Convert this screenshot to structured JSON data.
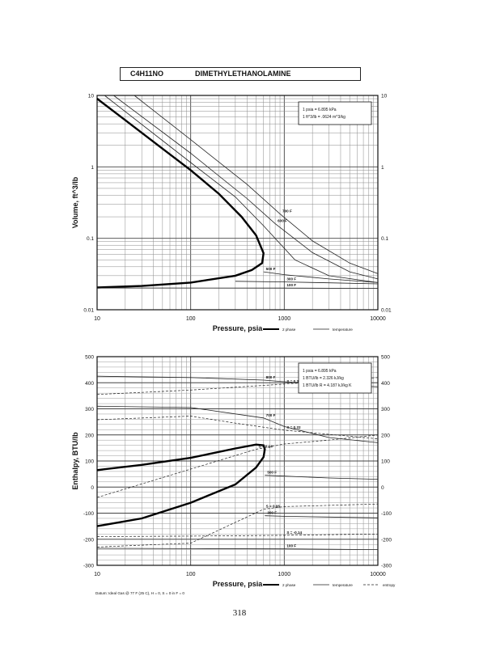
{
  "header": {
    "formula": "C4H11NO",
    "name": "DIMETHYLETHANOLAMINE"
  },
  "page_number": "318",
  "chart_data": [
    {
      "type": "line",
      "xscale": "log",
      "yscale": "log",
      "xlabel": "Pressure,  psia",
      "ylabel": "Volume, ft^3/lb",
      "xlim": [
        10,
        10000
      ],
      "ylim": [
        0.01,
        10
      ],
      "x_ticks": [
        "10",
        "100",
        "1000",
        "10000"
      ],
      "y_ticks": [
        "0.01",
        "0.1",
        "1",
        "10"
      ],
      "notes": [
        "1 psia = 6.895 kPa",
        "1 ft^3/lb = .0624 m^3/kg"
      ],
      "legend": {
        "two_phase": "2 phase",
        "temperature": "temperature"
      },
      "series": [
        {
          "kind": "two_phase",
          "points": [
            [
              10,
              9.0
            ],
            [
              20,
              4.5
            ],
            [
              50,
              1.8
            ],
            [
              100,
              0.9
            ],
            [
              200,
              0.42
            ],
            [
              350,
              0.2
            ],
            [
              500,
              0.11
            ],
            [
              600,
              0.062
            ],
            [
              580,
              0.045
            ],
            [
              450,
              0.036
            ],
            [
              300,
              0.03
            ],
            [
              100,
              0.024
            ],
            [
              30,
              0.0215
            ],
            [
              10,
              0.0205
            ]
          ]
        },
        {
          "kind": "temperature",
          "name": "600 F",
          "points": [
            [
              15,
              10
            ],
            [
              100,
              1.55
            ],
            [
              400,
              0.36
            ],
            [
              800,
              0.16
            ],
            [
              2000,
              0.063
            ],
            [
              5000,
              0.034
            ],
            [
              10000,
              0.027
            ]
          ]
        },
        {
          "kind": "temperature",
          "name": "700 F",
          "points": [
            [
              25,
              10
            ],
            [
              100,
              2.4
            ],
            [
              400,
              0.57
            ],
            [
              900,
              0.22
            ],
            [
              2000,
              0.092
            ],
            [
              5000,
              0.045
            ],
            [
              10000,
              0.032
            ]
          ]
        },
        {
          "kind": "temperature",
          "name": "",
          "points": [
            [
              12,
              10
            ],
            [
              100,
              1.15
            ],
            [
              300,
              0.38
            ],
            [
              600,
              0.15
            ],
            [
              1300,
              0.05
            ],
            [
              3000,
              0.03
            ],
            [
              10000,
              0.024
            ]
          ]
        },
        {
          "kind": "temperature",
          "name": "500 F",
          "points": [
            [
              600,
              0.034
            ],
            [
              1000,
              0.031
            ],
            [
              3000,
              0.027
            ],
            [
              10000,
              0.024
            ]
          ]
        },
        {
          "kind": "temperature",
          "name": "300 F",
          "points": [
            [
              300,
              0.025
            ],
            [
              1000,
              0.0245
            ],
            [
              3000,
              0.0238
            ],
            [
              10000,
              0.023
            ]
          ]
        },
        {
          "kind": "temperature",
          "name": "100 F",
          "points": [
            [
              10,
              0.0202
            ],
            [
              1000,
              0.0201
            ],
            [
              10000,
              0.0199
            ]
          ]
        }
      ],
      "annotations": [
        "600 F",
        "700 F",
        "500 F",
        "300 F",
        "100 F"
      ]
    },
    {
      "type": "line",
      "xscale": "log",
      "yscale": "linear",
      "xlabel": "Pressure,  psia",
      "ylabel": "Enthalpy, BTU/lb",
      "xlim": [
        10,
        10000
      ],
      "ylim": [
        -300,
        500
      ],
      "x_ticks": [
        "10",
        "100",
        "1000",
        "10000"
      ],
      "y_ticks": [
        "-300",
        "-200",
        "-100",
        "0",
        "100",
        "200",
        "300",
        "400",
        "500"
      ],
      "notes": [
        "1 psia = 6.895 kPa",
        "1 BTU/lb = 2.326 kJ/kg",
        "1 BTU/lb R = 4.187 kJ/kg K"
      ],
      "footnote": "Datum: Ideal Gas @ 77 F (25 C), H = 0, S = 0 in F = 0",
      "legend": {
        "two_phase": "2 phase",
        "temperature": "temperature",
        "entropy": "entropy"
      },
      "series": [
        {
          "kind": "two_phase",
          "points": [
            [
              10,
              65
            ],
            [
              30,
              85
            ],
            [
              100,
              112
            ],
            [
              300,
              148
            ],
            [
              500,
              163
            ],
            [
              600,
              160
            ],
            [
              620,
              145
            ],
            [
              600,
              115
            ],
            [
              500,
              75
            ],
            [
              300,
              10
            ],
            [
              100,
              -60
            ],
            [
              30,
              -120
            ],
            [
              10,
              -150
            ]
          ]
        },
        {
          "kind": "temperature",
          "name": "800 F",
          "points": [
            [
              10,
              425
            ],
            [
              100,
              420
            ],
            [
              600,
              410
            ],
            [
              1000,
              404
            ],
            [
              3000,
              392
            ],
            [
              10000,
              385
            ]
          ]
        },
        {
          "kind": "temperature",
          "name": "700 F",
          "points": [
            [
              10,
              310
            ],
            [
              100,
              305
            ],
            [
              600,
              265
            ],
            [
              1000,
              232
            ],
            [
              3000,
              190
            ],
            [
              10000,
              170
            ]
          ]
        },
        {
          "kind": "temperature",
          "name": "500 F",
          "points": [
            [
              620,
              45
            ],
            [
              1000,
              42
            ],
            [
              3000,
              35
            ],
            [
              10000,
              30
            ]
          ]
        },
        {
          "kind": "temperature",
          "name": "300 F",
          "points": [
            [
              620,
              -110
            ],
            [
              1000,
              -112
            ],
            [
              3000,
              -115
            ],
            [
              10000,
              -118
            ]
          ]
        },
        {
          "kind": "temperature",
          "name": "100 F",
          "points": [
            [
              10,
              -235
            ],
            [
              100,
              -236
            ],
            [
              1000,
              -237
            ],
            [
              10000,
              -240
            ]
          ]
        },
        {
          "kind": "entropy",
          "name": "S = 0.30",
          "points": [
            [
              10,
              355
            ],
            [
              100,
              372
            ],
            [
              1000,
              395
            ],
            [
              10000,
              420
            ]
          ]
        },
        {
          "kind": "entropy",
          "name": "S = 0.22",
          "points": [
            [
              10,
              258
            ],
            [
              100,
              272
            ],
            [
              300,
              245
            ],
            [
              1000,
              218
            ],
            [
              10000,
              185
            ]
          ]
        },
        {
          "kind": "entropy",
          "name": "S = 0.14",
          "points": [
            [
              10,
              -40
            ],
            [
              500,
              145
            ],
            [
              1000,
              165
            ],
            [
              3000,
              180
            ],
            [
              10000,
              200
            ]
          ]
        },
        {
          "kind": "entropy",
          "name": "S = 0.06",
          "points": [
            [
              10,
              -230
            ],
            [
              100,
              -215
            ],
            [
              600,
              -85
            ],
            [
              1000,
              -75
            ],
            [
              10000,
              -65
            ]
          ]
        },
        {
          "kind": "entropy",
          "name": "S = -0.14",
          "points": [
            [
              10,
              -190
            ],
            [
              100,
              -188
            ],
            [
              1000,
              -185
            ],
            [
              10000,
              -180
            ]
          ]
        }
      ],
      "annotations": [
        "800 F",
        "700 F",
        "500 F",
        "300 F",
        "100 F",
        "S = 0.30",
        "S = 0.22",
        "S = 0.14",
        "S = 0.06",
        "S = -0.14"
      ]
    }
  ]
}
